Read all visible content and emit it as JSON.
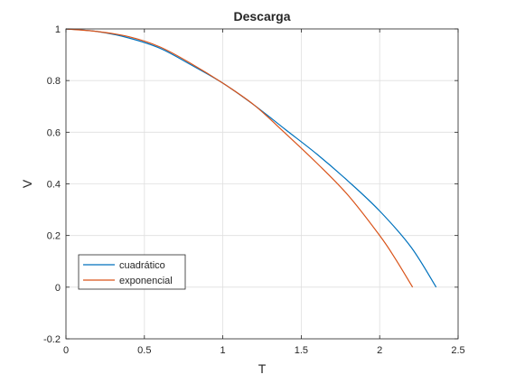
{
  "chart_data": {
    "type": "line",
    "title": "Descarga",
    "xlabel": "T",
    "ylabel": "V",
    "xlim": [
      0,
      2.5
    ],
    "ylim": [
      -0.2,
      1
    ],
    "xticks": [
      0,
      0.5,
      1,
      1.5,
      2,
      2.5
    ],
    "xtick_labels": [
      "0",
      "0.5",
      "1",
      "1.5",
      "2",
      "2.5"
    ],
    "yticks": [
      -0.2,
      0,
      0.2,
      0.4,
      0.6,
      0.8,
      1
    ],
    "ytick_labels": [
      "-0.2",
      "0",
      "0.2",
      "0.4",
      "0.6",
      "0.8",
      "1"
    ],
    "grid": true,
    "legend_location": "bottom-left",
    "series": [
      {
        "name": "cuadrático",
        "color": "#0072bd",
        "x": [
          0,
          0.2,
          0.4,
          0.6,
          0.8,
          1.0,
          1.2,
          1.4,
          1.6,
          1.8,
          2.0,
          2.2,
          2.36
        ],
        "y": [
          1.0,
          0.99,
          0.965,
          0.925,
          0.86,
          0.79,
          0.705,
          0.61,
          0.515,
          0.41,
          0.295,
          0.155,
          0.0
        ]
      },
      {
        "name": "exponencial",
        "color": "#d95319",
        "x": [
          0,
          0.2,
          0.4,
          0.6,
          0.8,
          1.0,
          1.2,
          1.4,
          1.6,
          1.8,
          2.0,
          2.1,
          2.21
        ],
        "y": [
          1.0,
          0.99,
          0.97,
          0.93,
          0.865,
          0.79,
          0.705,
          0.595,
          0.48,
          0.355,
          0.2,
          0.11,
          0.0
        ]
      }
    ]
  }
}
